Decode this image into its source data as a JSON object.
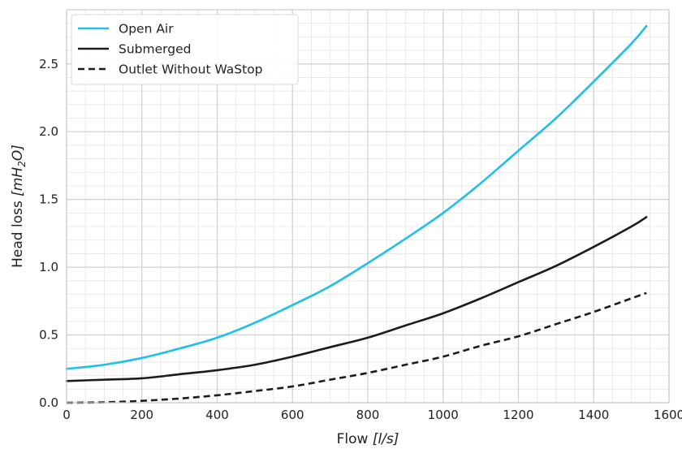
{
  "chart_data": {
    "type": "line",
    "xlabel_main": "Flow ",
    "xlabel_unit": "[l/s]",
    "ylabel_main": "Head loss ",
    "ylabel_unit_open": "[mH",
    "ylabel_unit_sub": "2",
    "ylabel_unit_close": "O]",
    "xlim": [
      0,
      1600
    ],
    "ylim": [
      0,
      2.9
    ],
    "x_ticks": [
      "0",
      "200",
      "400",
      "600",
      "800",
      "1000",
      "1200",
      "1400",
      "1600"
    ],
    "y_ticks": [
      "0.0",
      "0.5",
      "1.0",
      "1.5",
      "2.0",
      "2.5"
    ],
    "grid": true,
    "legend_position": "upper-left",
    "x": [
      0,
      100,
      200,
      300,
      400,
      500,
      600,
      700,
      800,
      900,
      1000,
      1100,
      1200,
      1300,
      1400,
      1500,
      1540
    ],
    "series": [
      {
        "name": "Open Air",
        "color": "#1ec0e8",
        "style": "solid",
        "values": [
          0.25,
          0.28,
          0.33,
          0.4,
          0.48,
          0.59,
          0.72,
          0.86,
          1.03,
          1.21,
          1.4,
          1.62,
          1.86,
          2.1,
          2.37,
          2.65,
          2.78
        ]
      },
      {
        "name": "Submerged",
        "color": "#1c1c1c",
        "style": "solid",
        "values": [
          0.16,
          0.17,
          0.18,
          0.21,
          0.24,
          0.28,
          0.34,
          0.41,
          0.48,
          0.57,
          0.66,
          0.77,
          0.89,
          1.01,
          1.15,
          1.3,
          1.37
        ]
      },
      {
        "name": "Outlet Without WaStop",
        "color": "#1c1c1c",
        "style": "dashed",
        "values": [
          0.0,
          0.003,
          0.014,
          0.031,
          0.055,
          0.086,
          0.12,
          0.17,
          0.22,
          0.28,
          0.34,
          0.42,
          0.49,
          0.58,
          0.67,
          0.77,
          0.81
        ]
      }
    ]
  }
}
